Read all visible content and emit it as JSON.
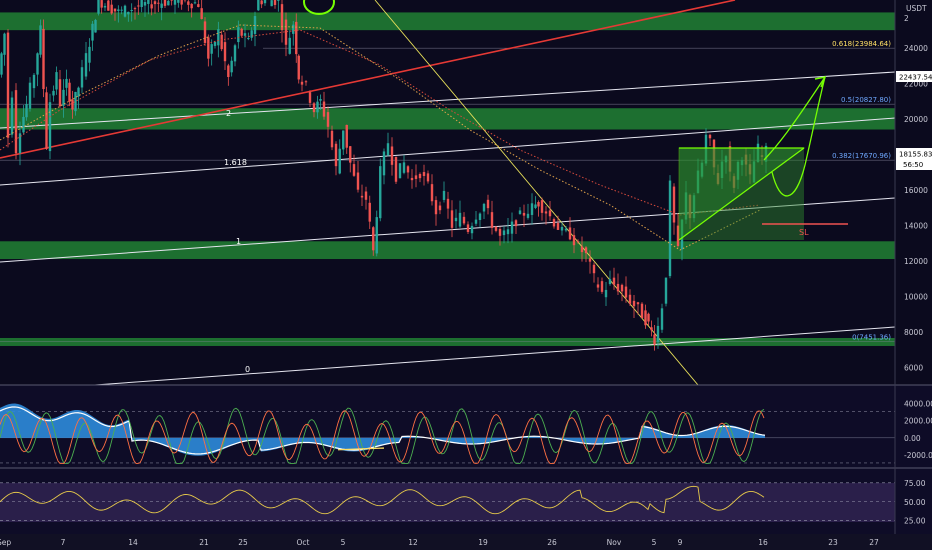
{
  "chart_data": [
    {
      "type": "line",
      "subtype": "candlestick",
      "currency": "USDT",
      "yticks": [
        6000,
        8000,
        10000,
        12000,
        14000,
        16000,
        18000,
        20000,
        22000,
        24000
      ],
      "ylim": [
        5000,
        26700
      ],
      "x_ticks": [
        "Sep",
        "7",
        "14",
        "21",
        "25",
        "Oct",
        "5",
        "12",
        "19",
        "26",
        "Nov",
        "5",
        "9",
        "16",
        "23",
        "27"
      ],
      "price_points": [
        [
          0,
          22500
        ],
        [
          6,
          24800
        ],
        [
          10,
          19000
        ],
        [
          14,
          21500
        ],
        [
          18,
          18300
        ],
        [
          22,
          19500
        ],
        [
          28,
          20800
        ],
        [
          36,
          22600
        ],
        [
          42,
          25000
        ],
        [
          48,
          18500
        ],
        [
          52,
          21000
        ],
        [
          58,
          22400
        ],
        [
          62,
          20900
        ],
        [
          68,
          22000
        ],
        [
          74,
          20600
        ],
        [
          80,
          21800
        ],
        [
          88,
          23500
        ],
        [
          100,
          26700
        ],
        [
          120,
          26000
        ],
        [
          150,
          26500
        ],
        [
          180,
          26700
        ],
        [
          200,
          26500
        ],
        [
          210,
          23400
        ],
        [
          220,
          24900
        ],
        [
          230,
          22300
        ],
        [
          240,
          25000
        ],
        [
          250,
          24300
        ],
        [
          260,
          26700
        ],
        [
          280,
          26700
        ],
        [
          288,
          24000
        ],
        [
          295,
          25400
        ],
        [
          300,
          22400
        ],
        [
          308,
          21800
        ],
        [
          316,
          20500
        ],
        [
          322,
          21000
        ],
        [
          330,
          19600
        ],
        [
          338,
          17200
        ],
        [
          345,
          19500
        ],
        [
          352,
          17500
        ],
        [
          360,
          15800
        ],
        [
          368,
          15500
        ],
        [
          375,
          12500
        ],
        [
          382,
          17000
        ],
        [
          390,
          18700
        ],
        [
          398,
          16800
        ],
        [
          406,
          17500
        ],
        [
          414,
          16500
        ],
        [
          422,
          17000
        ],
        [
          430,
          16200
        ],
        [
          438,
          14800
        ],
        [
          446,
          15600
        ],
        [
          454,
          14000
        ],
        [
          462,
          14500
        ],
        [
          470,
          13800
        ],
        [
          478,
          14600
        ],
        [
          486,
          15200
        ],
        [
          494,
          14100
        ],
        [
          502,
          13300
        ],
        [
          510,
          13600
        ],
        [
          518,
          14300
        ],
        [
          526,
          14700
        ],
        [
          534,
          15000
        ],
        [
          540,
          15300
        ],
        [
          548,
          14800
        ],
        [
          556,
          14200
        ],
        [
          564,
          13600
        ],
        [
          572,
          13500
        ],
        [
          580,
          12800
        ],
        [
          588,
          12300
        ],
        [
          596,
          11000
        ],
        [
          604,
          10200
        ],
        [
          612,
          10800
        ],
        [
          620,
          10500
        ],
        [
          628,
          10000
        ],
        [
          636,
          9500
        ],
        [
          644,
          9000
        ],
        [
          650,
          8400
        ],
        [
          656,
          7600
        ],
        [
          660,
          8300
        ],
        [
          664,
          9500
        ],
        [
          668,
          11300
        ],
        [
          672,
          16200
        ],
        [
          676,
          14000
        ],
        [
          680,
          12500
        ],
        [
          684,
          14200
        ],
        [
          688,
          15700
        ],
        [
          692,
          14600
        ],
        [
          696,
          15800
        ],
        [
          700,
          16800
        ],
        [
          704,
          17500
        ],
        [
          708,
          19000
        ],
        [
          712,
          18600
        ],
        [
          716,
          17200
        ],
        [
          720,
          16500
        ],
        [
          724,
          17600
        ],
        [
          728,
          18200
        ],
        [
          732,
          16800
        ],
        [
          736,
          16300
        ],
        [
          740,
          17500
        ],
        [
          744,
          18000
        ],
        [
          748,
          17200
        ],
        [
          752,
          16600
        ],
        [
          756,
          17600
        ],
        [
          760,
          18300
        ],
        [
          764,
          17800
        ],
        [
          768,
          18155
        ]
      ],
      "last_price": "18155.83",
      "countdown": "56:50",
      "target_price": "22437.54",
      "fib_levels": [
        {
          "label": "0.618(23984.64)",
          "price": 23984.64,
          "color": "#ffe066"
        },
        {
          "label": "0.5(20827.80)",
          "price": 20827.8,
          "color": "#6fa8ff"
        },
        {
          "label": "0.382(17670.96)",
          "price": 17670.96,
          "color": "#6fa8ff"
        },
        {
          "label": "0(7451.36)",
          "price": 7451.36,
          "color": "#6fa8ff"
        }
      ],
      "support_zones": [
        {
          "low": 25000,
          "high": 26000
        },
        {
          "low": 19400,
          "high": 20600
        },
        {
          "low": 12100,
          "high": 13100
        },
        {
          "low": 7200,
          "high": 7650
        }
      ],
      "annotations": [
        "2",
        "1.618",
        "1",
        "0",
        "SL",
        "2"
      ]
    },
    {
      "type": "area",
      "name": "momentum oscillator",
      "yticks": [
        -2000,
        0,
        2000,
        4000
      ],
      "ylim": [
        -3300,
        5600
      ]
    },
    {
      "type": "line",
      "name": "RSI",
      "yticks": [
        "25.00",
        "50.00",
        "75.00"
      ],
      "ylim": [
        10,
        92
      ]
    }
  ],
  "colors": {
    "background": "#0b0a1e",
    "zone": "#1f7a32",
    "trend_red": "#e53935",
    "bull_candle": "#26a69a",
    "bear_candle": "#ef5350",
    "projection": "#76ff03",
    "osc_fill": "#2e8bdb",
    "rsi_line": "#e6c94a",
    "rsi_band": "#2a1f4a"
  }
}
